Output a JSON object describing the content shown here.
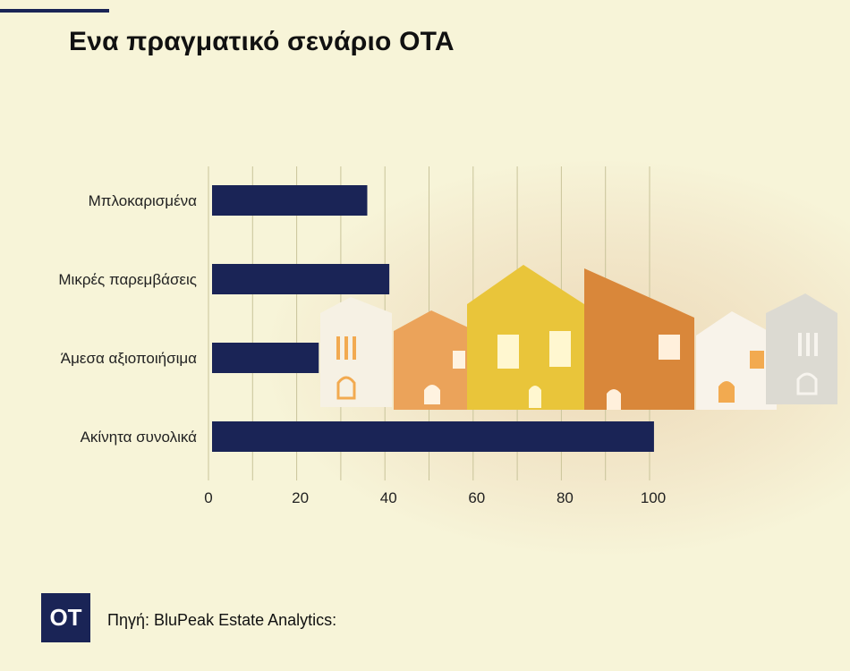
{
  "header": {
    "title": "Ενα πραγματικό σενάριο ΟΤΑ"
  },
  "chart_data": {
    "type": "bar",
    "orientation": "horizontal",
    "categories": [
      "Μπλοκαρισμένα",
      "Μικρές παρεμβάσεις",
      "Άμεσα αξιοποιήσιμα",
      "Ακίνητα συνολικά"
    ],
    "values": [
      36,
      41,
      25,
      101
    ],
    "xlim": [
      0,
      100
    ],
    "xticks": [
      "0",
      "20",
      "40",
      "60",
      "80",
      "100"
    ],
    "grid_step": 10,
    "bar_color": "#1a2456",
    "legend": "none"
  },
  "footer": {
    "logo": "OT",
    "source": "Πηγή: BluPeak Estate Analytics:"
  }
}
